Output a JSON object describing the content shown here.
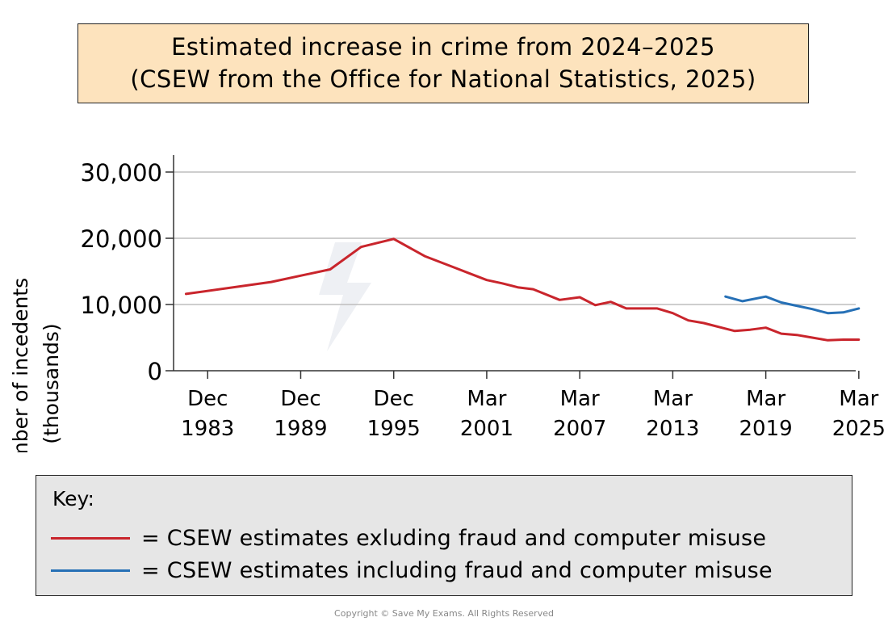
{
  "title": {
    "line1": "Estimated increase in crime from 2024–2025",
    "line2": "(CSEW from the Office for National Statistics, 2025)"
  },
  "key": {
    "heading": "Key:",
    "items": [
      {
        "label": "= CSEW estimates exluding fraud and computer misuse",
        "color": "#c9252c"
      },
      {
        "label": "= CSEW estimates including fraud and computer misuse",
        "color": "#2670b6"
      }
    ]
  },
  "watermark": "Save My Exams",
  "copyright": "Copyright © Save My Exams. All Rights Reserved",
  "chart_data": {
    "type": "line",
    "ylabel_line1": "Number of incedents",
    "ylabel_line2": "(thousands)",
    "ylim": [
      0,
      30000
    ],
    "xlim": [
      1981.7,
      2025.7
    ],
    "yticks": [
      {
        "value": 0,
        "label": "0"
      },
      {
        "value": 10000,
        "label": "10,000"
      },
      {
        "value": 20000,
        "label": "20,000"
      },
      {
        "value": 30000,
        "label": "30,000"
      }
    ],
    "xticks": [
      {
        "value": 1983.9,
        "line1": "Dec",
        "line2": "1983"
      },
      {
        "value": 1989.9,
        "line1": "Dec",
        "line2": "1989"
      },
      {
        "value": 1995.9,
        "line1": "Dec",
        "line2": "1995"
      },
      {
        "value": 2001.9,
        "line1": "Mar",
        "line2": "2001"
      },
      {
        "value": 2007.9,
        "line1": "Mar",
        "line2": "2007"
      },
      {
        "value": 2013.9,
        "line1": "Mar",
        "line2": "2013"
      },
      {
        "value": 2019.9,
        "line1": "Mar",
        "line2": "2019"
      },
      {
        "value": 2025.9,
        "line1": "Mar",
        "line2": "2025"
      }
    ],
    "grid": true,
    "series": [
      {
        "color": "#c9252c",
        "points": [
          [
            1982.5,
            11600
          ],
          [
            1988.0,
            13400
          ],
          [
            1991.8,
            15300
          ],
          [
            1993.8,
            18700
          ],
          [
            1995.9,
            19900
          ],
          [
            1997.9,
            17300
          ],
          [
            1999.9,
            15500
          ],
          [
            2000.9,
            14600
          ],
          [
            2001.9,
            13700
          ],
          [
            2002.9,
            13200
          ],
          [
            2003.9,
            12600
          ],
          [
            2004.9,
            12300
          ],
          [
            2006.6,
            10700
          ],
          [
            2007.9,
            11100
          ],
          [
            2008.9,
            9900
          ],
          [
            2009.9,
            10400
          ],
          [
            2010.9,
            9400
          ],
          [
            2011.9,
            9400
          ],
          [
            2012.9,
            9400
          ],
          [
            2013.9,
            8700
          ],
          [
            2014.9,
            7600
          ],
          [
            2015.9,
            7200
          ],
          [
            2016.9,
            6600
          ],
          [
            2017.9,
            6000
          ],
          [
            2018.9,
            6200
          ],
          [
            2019.9,
            6500
          ],
          [
            2020.9,
            5600
          ],
          [
            2021.9,
            5400
          ],
          [
            2022.9,
            5000
          ],
          [
            2023.9,
            4600
          ],
          [
            2024.9,
            4700
          ],
          [
            2025.9,
            4700
          ]
        ]
      },
      {
        "color": "#2670b6",
        "points": [
          [
            2017.3,
            11200
          ],
          [
            2018.4,
            10500
          ],
          [
            2019.9,
            11200
          ],
          [
            2020.9,
            10300
          ],
          [
            2021.9,
            9800
          ],
          [
            2022.9,
            9300
          ],
          [
            2023.9,
            8700
          ],
          [
            2024.9,
            8800
          ],
          [
            2025.9,
            9400
          ]
        ]
      }
    ]
  }
}
